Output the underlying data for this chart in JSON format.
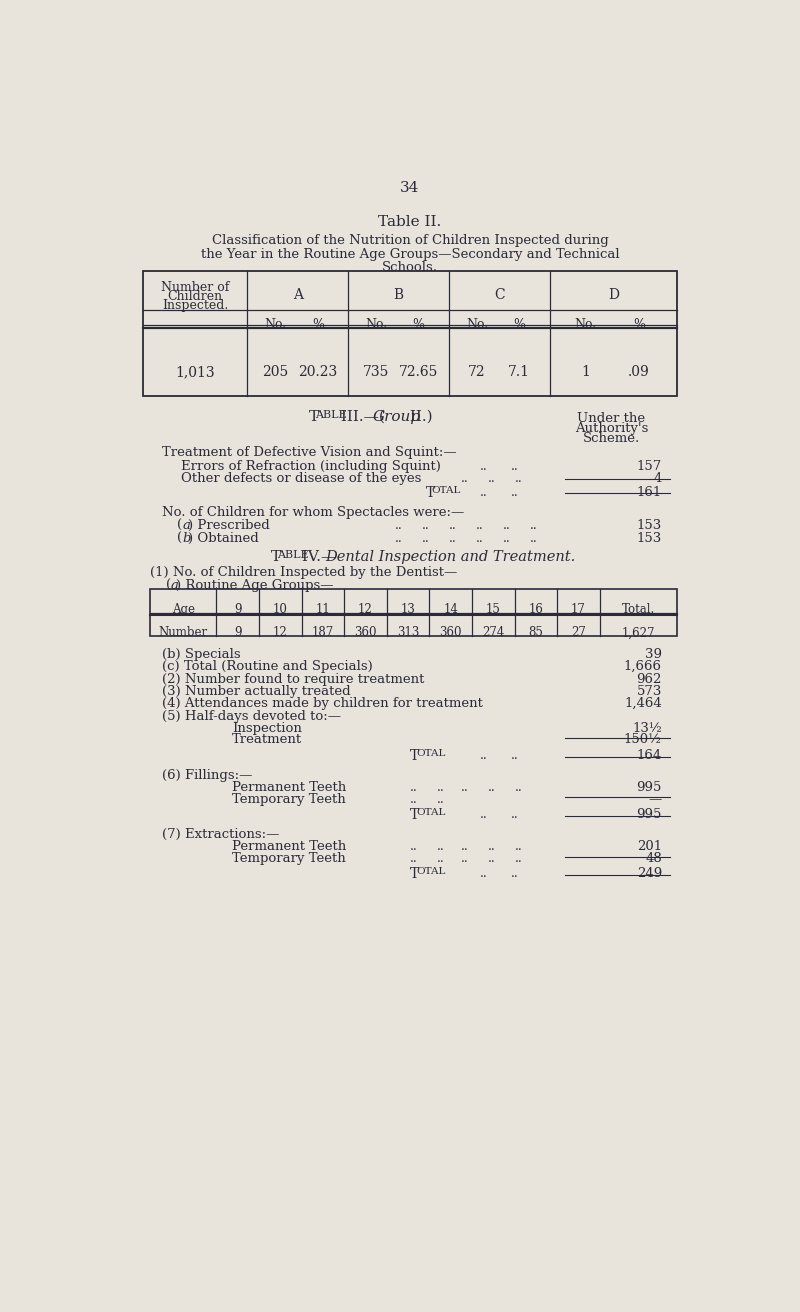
{
  "page_number": "34",
  "bg_color": "#e8e4dc",
  "text_color": "#2a2a3a",
  "table2_title": "Table II.",
  "table2_subtitle_line1": "Classification of the Nutrition of Children Inspected during",
  "table2_subtitle_line2": "the Year in the Routine Age Groups—Secondary and Technical",
  "table2_subtitle_line3": "Schools.",
  "table3_title_pre": "Table III.—(",
  "table3_title_italic": "Group",
  "table3_title_post": " II.)",
  "table3_right_header": [
    "Under the",
    "Authority's",
    "Scheme."
  ],
  "dental_ages": [
    "Age",
    "9",
    "10",
    "11",
    "12",
    "13",
    "14",
    "15",
    "16",
    "17",
    "Total."
  ],
  "dental_numbers": [
    "Number",
    "9",
    "12",
    "187",
    "360",
    "313",
    "360",
    "274",
    "85",
    "27",
    "1,627"
  ],
  "dental_list_labels": [
    "(b) Specials",
    "(c) Total (Routine and Specials)",
    "(2) Number found to require treatment",
    "(3) Number actually treated",
    "(4) Attendances made by children for treatment",
    "(5) Half-days devoted to:—"
  ],
  "dental_list_values": [
    "39",
    "1,666",
    "962",
    "573",
    "1,464",
    ""
  ],
  "halfdays_labels": [
    "Inspection",
    "Treatment"
  ],
  "halfdays_values": [
    "13½",
    "150½"
  ],
  "halfdays_total": "164",
  "fillings_perm": "995",
  "fillings_temp": "—",
  "fillings_total": "995",
  "extractions_perm": "201",
  "extractions_temp": "48",
  "extractions_total": "249"
}
